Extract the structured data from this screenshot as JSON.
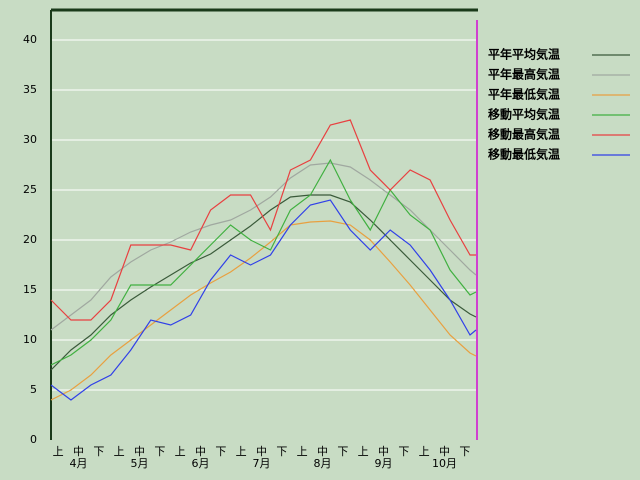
{
  "chart_data": {
    "type": "line",
    "categories": [
      "上",
      "中",
      "下",
      "上",
      "中",
      "下",
      "上",
      "中",
      "下",
      "上",
      "中",
      "下",
      "上",
      "中",
      "下",
      "上",
      "中",
      "下",
      "上",
      "中",
      "下"
    ],
    "months": [
      "4月",
      "5月",
      "6月",
      "7月",
      "8月",
      "9月",
      "10月"
    ],
    "x": [
      0,
      10,
      20,
      30,
      40,
      50,
      60,
      70,
      80,
      90,
      100,
      110,
      120,
      130,
      140,
      150,
      160,
      170,
      180,
      190,
      200,
      210,
      213
    ],
    "xlim": [
      0,
      214
    ],
    "ylim": [
      0,
      43
    ],
    "yticks": [
      0,
      5,
      10,
      15,
      20,
      25,
      30,
      35,
      40
    ],
    "grid": true,
    "legend": "right",
    "series": [
      {
        "name": "平年平均気温",
        "color": "#3a5a3a",
        "values": [
          7,
          9,
          10.5,
          12.5,
          14,
          15.3,
          16.5,
          17.7,
          18.6,
          20,
          21.4,
          23,
          24.3,
          24.5,
          24.5,
          23.8,
          22,
          20,
          18,
          16,
          14,
          12.6,
          12.3
        ]
      },
      {
        "name": "平年最高気温",
        "color": "#a0a8a0",
        "values": [
          11,
          12.5,
          14,
          16.3,
          17.8,
          19,
          19.8,
          20.8,
          21.5,
          22,
          23,
          24.3,
          26.2,
          27.5,
          27.7,
          27.3,
          26,
          24.5,
          23,
          21,
          19,
          17,
          16.5
        ]
      },
      {
        "name": "平年最低気温",
        "color": "#e8a040",
        "values": [
          4,
          5,
          6.5,
          8.5,
          10,
          11.5,
          13,
          14.5,
          15.7,
          16.8,
          18.2,
          19.8,
          21.5,
          21.8,
          21.9,
          21.5,
          20,
          17.8,
          15.5,
          13,
          10.5,
          8.7,
          8.4
        ]
      },
      {
        "name": "移動平均気温",
        "color": "#40b040",
        "values": [
          7.5,
          8.5,
          10,
          12,
          15.5,
          15.5,
          15.5,
          17.5,
          19.5,
          21.5,
          20,
          19,
          23,
          24.5,
          28,
          24,
          21,
          25,
          22.5,
          21,
          17,
          14.5,
          14.8
        ]
      },
      {
        "name": "移動最高気温",
        "color": "#e84040",
        "values": [
          14,
          12,
          12,
          14,
          19.5,
          19.5,
          19.5,
          19,
          23,
          24.5,
          24.5,
          21,
          27,
          28,
          31.5,
          32,
          27,
          25,
          27,
          26,
          22,
          18.5,
          18.5
        ]
      },
      {
        "name": "移動最低気温",
        "color": "#3040e8",
        "values": [
          5.5,
          4,
          5.5,
          6.5,
          9,
          12,
          11.5,
          12.5,
          16,
          18.5,
          17.5,
          18.5,
          21.5,
          23.5,
          24,
          21,
          19,
          21,
          19.5,
          17,
          14,
          10.5,
          11
        ]
      }
    ]
  }
}
